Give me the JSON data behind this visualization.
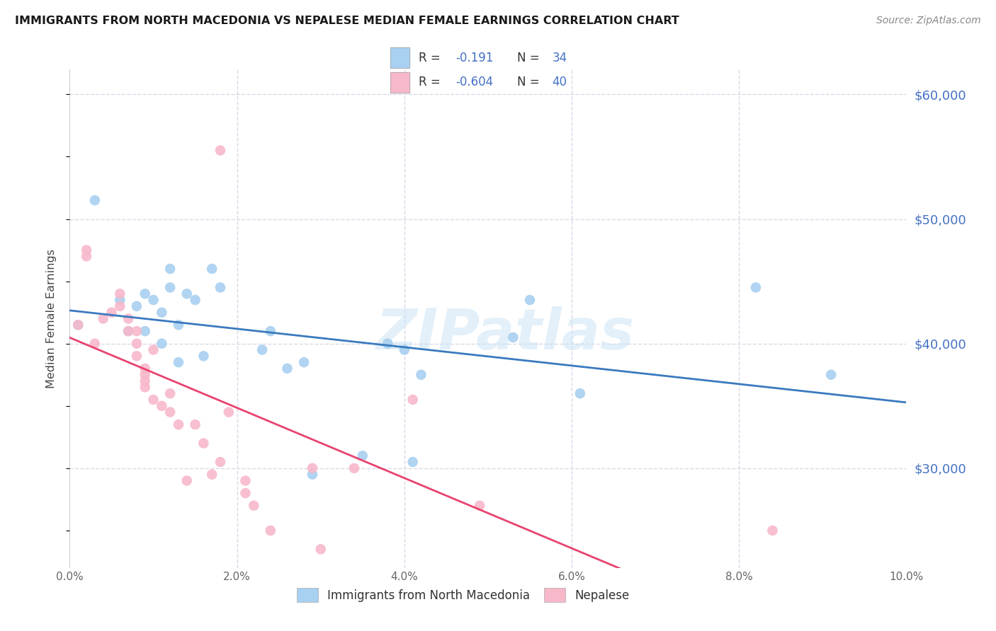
{
  "title": "IMMIGRANTS FROM NORTH MACEDONIA VS NEPALESE MEDIAN FEMALE EARNINGS CORRELATION CHART",
  "source": "Source: ZipAtlas.com",
  "ylabel": "Median Female Earnings",
  "watermark": "ZIPatlas",
  "blue_R": "-0.191",
  "blue_N": "34",
  "pink_R": "-0.604",
  "pink_N": "40",
  "legend_label_blue": "Immigrants from North Macedonia",
  "legend_label_pink": "Nepalese",
  "blue_color": "#a8d0f0",
  "pink_color": "#f7b8ca",
  "blue_line_color": "#3a7abf",
  "pink_line_color": "#e8436e",
  "legend_text_color": "#4472c4",
  "ytick_color": "#4472c4",
  "background_color": "#ffffff",
  "grid_color": "#d8d8e8",
  "xlim": [
    0.0,
    0.1
  ],
  "ylim": [
    22000,
    62000
  ],
  "yticks": [
    30000,
    40000,
    50000,
    60000
  ],
  "ytick_labels": [
    "$30,000",
    "$40,000",
    "$50,000",
    "$60,000"
  ],
  "blue_x": [
    0.001,
    0.003,
    0.006,
    0.007,
    0.008,
    0.009,
    0.009,
    0.01,
    0.011,
    0.011,
    0.012,
    0.012,
    0.013,
    0.013,
    0.014,
    0.015,
    0.016,
    0.017,
    0.018,
    0.023,
    0.024,
    0.026,
    0.028,
    0.029,
    0.035,
    0.038,
    0.04,
    0.041,
    0.042,
    0.053,
    0.055,
    0.061,
    0.082,
    0.091
  ],
  "blue_y": [
    41500,
    51500,
    43500,
    41000,
    43000,
    44000,
    41000,
    43500,
    42500,
    40000,
    46000,
    44500,
    41500,
    38500,
    44000,
    43500,
    39000,
    46000,
    44500,
    39500,
    41000,
    38000,
    38500,
    29500,
    31000,
    40000,
    39500,
    30500,
    37500,
    40500,
    43500,
    36000,
    44500,
    37500
  ],
  "pink_x": [
    0.001,
    0.002,
    0.002,
    0.003,
    0.004,
    0.005,
    0.006,
    0.006,
    0.007,
    0.007,
    0.008,
    0.008,
    0.008,
    0.009,
    0.009,
    0.009,
    0.009,
    0.01,
    0.01,
    0.011,
    0.012,
    0.012,
    0.013,
    0.014,
    0.015,
    0.016,
    0.017,
    0.018,
    0.018,
    0.019,
    0.021,
    0.021,
    0.022,
    0.024,
    0.029,
    0.03,
    0.034,
    0.041,
    0.049,
    0.084
  ],
  "pink_y": [
    41500,
    47500,
    47000,
    40000,
    42000,
    42500,
    43000,
    44000,
    41000,
    42000,
    40000,
    39000,
    41000,
    38000,
    37500,
    37000,
    36500,
    39500,
    35500,
    35000,
    34500,
    36000,
    33500,
    29000,
    33500,
    32000,
    29500,
    30500,
    55500,
    34500,
    28000,
    29000,
    27000,
    25000,
    30000,
    23500,
    30000,
    35500,
    27000,
    25000
  ]
}
